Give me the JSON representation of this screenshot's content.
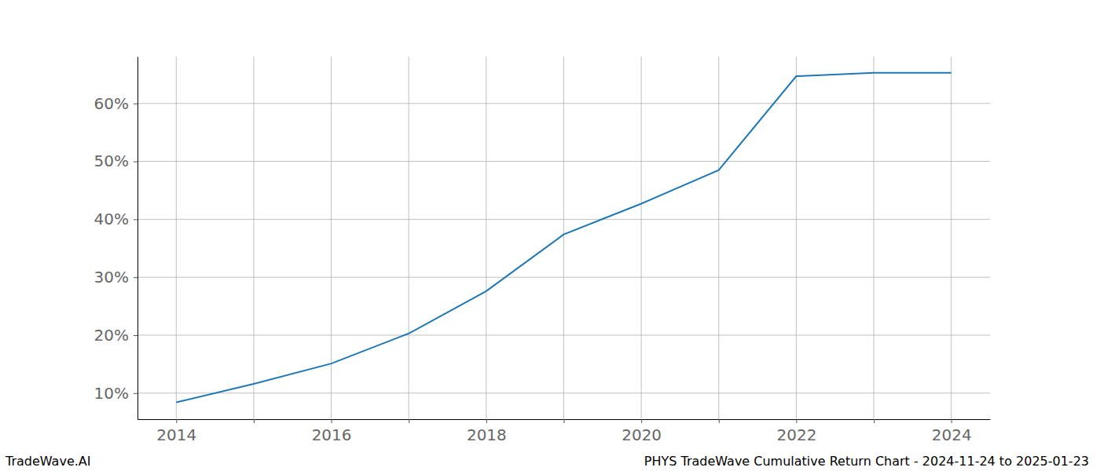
{
  "chart_data": {
    "type": "line",
    "title": "PHYS TradeWave Cumulative Return Chart - 2024-11-24 to 2025-01-23",
    "source": "TradeWave.AI",
    "x": [
      2014,
      2015,
      2016,
      2017,
      2018,
      2019,
      2020,
      2021,
      2022,
      2023,
      2024
    ],
    "values": [
      8.4,
      11.6,
      15.1,
      20.3,
      27.6,
      37.4,
      42.7,
      48.5,
      64.7,
      65.3,
      65.3
    ],
    "color": "#1f77b4",
    "xlim": [
      2013.5,
      2024.5
    ],
    "xticks": [
      2014,
      {
        "value": 2015,
        "label": null
      },
      2016,
      {
        "value": 2017,
        "label": null
      },
      2018,
      {
        "value": 2019,
        "label": null
      },
      2020,
      {
        "value": 2021,
        "label": null
      },
      2022,
      {
        "value": 2023,
        "label": null
      },
      2024
    ],
    "ylim": [
      5.5,
      68.1
    ],
    "yticks": [
      {
        "value": 10,
        "label": "10%"
      },
      {
        "value": 20,
        "label": "20%"
      },
      {
        "value": 30,
        "label": "30%"
      },
      {
        "value": 40,
        "label": "40%"
      },
      {
        "value": 50,
        "label": "50%"
      },
      {
        "value": 60,
        "label": "60%"
      }
    ],
    "grid": true
  }
}
